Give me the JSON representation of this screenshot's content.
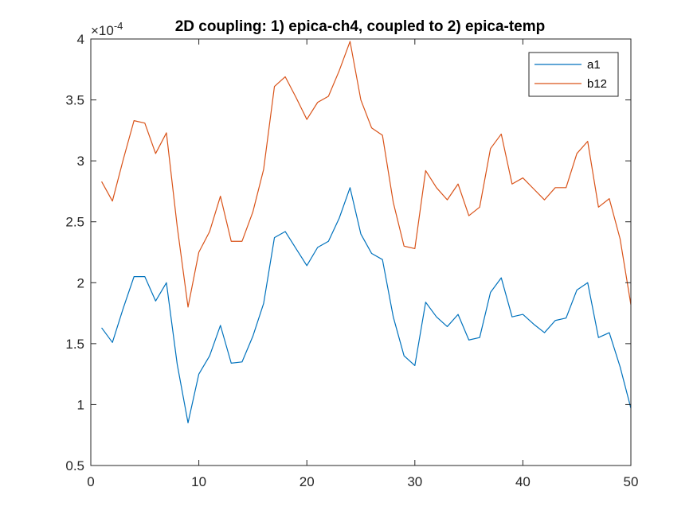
{
  "chart_data": {
    "type": "line",
    "title": "2D coupling: 1) epica-ch4, coupled to 2) epica-temp",
    "xlabel": "",
    "ylabel": "",
    "xlim": [
      0,
      50
    ],
    "ylim": [
      5e-05,
      0.0004
    ],
    "xticks": [
      0,
      10,
      20,
      30,
      40,
      50
    ],
    "xtick_labels": [
      "0",
      "10",
      "20",
      "30",
      "40",
      "50"
    ],
    "yticks": [
      5e-05,
      0.0001,
      0.00015,
      0.0002,
      0.00025,
      0.0003,
      0.00035,
      0.0004
    ],
    "ytick_labels": [
      "0.5",
      "1",
      "1.5",
      "2",
      "2.5",
      "3",
      "3.5",
      "4"
    ],
    "y_exponent": {
      "base": "×10",
      "power": "-4"
    },
    "grid": false,
    "legend_position": "top-right",
    "x": [
      1,
      2,
      3,
      4,
      5,
      6,
      7,
      8,
      9,
      10,
      11,
      12,
      13,
      14,
      15,
      16,
      17,
      18,
      19,
      20,
      21,
      22,
      23,
      24,
      25,
      26,
      27,
      28,
      29,
      30,
      31,
      32,
      33,
      34,
      35,
      36,
      37,
      38,
      39,
      40,
      41,
      42,
      43,
      44,
      45,
      46,
      47,
      48,
      49,
      50
    ],
    "series": [
      {
        "name": "a1",
        "color": "#0072BD",
        "values": [
          0.000163,
          0.000151,
          0.000179,
          0.000205,
          0.000205,
          0.000185,
          0.0002,
          0.000133,
          8.5e-05,
          0.000125,
          0.00014,
          0.000165,
          0.000134,
          0.000135,
          0.000156,
          0.000183,
          0.000237,
          0.000242,
          0.000228,
          0.000214,
          0.000229,
          0.000234,
          0.000253,
          0.000278,
          0.00024,
          0.000224,
          0.000219,
          0.000172,
          0.00014,
          0.000132,
          0.000184,
          0.000172,
          0.000164,
          0.000174,
          0.000153,
          0.000155,
          0.000192,
          0.000204,
          0.000172,
          0.000174,
          0.000166,
          0.000159,
          0.000169,
          0.000171,
          0.000194,
          0.0002,
          0.000155,
          0.000159,
          0.000131,
          9.7e-05
        ]
      },
      {
        "name": "b12",
        "color": "#D95319",
        "values": [
          0.000283,
          0.000267,
          0.000301,
          0.000333,
          0.000331,
          0.000306,
          0.000323,
          0.000246,
          0.00018,
          0.000225,
          0.000242,
          0.000271,
          0.000234,
          0.000234,
          0.000258,
          0.000293,
          0.000361,
          0.000369,
          0.000352,
          0.000334,
          0.000348,
          0.000353,
          0.000374,
          0.000398,
          0.00035,
          0.000327,
          0.000321,
          0.000266,
          0.00023,
          0.000228,
          0.000292,
          0.000278,
          0.000268,
          0.000281,
          0.000255,
          0.000262,
          0.00031,
          0.000322,
          0.000281,
          0.000286,
          0.000277,
          0.000268,
          0.000278,
          0.000278,
          0.000306,
          0.000316,
          0.000262,
          0.000269,
          0.000236,
          0.000182
        ]
      }
    ]
  }
}
